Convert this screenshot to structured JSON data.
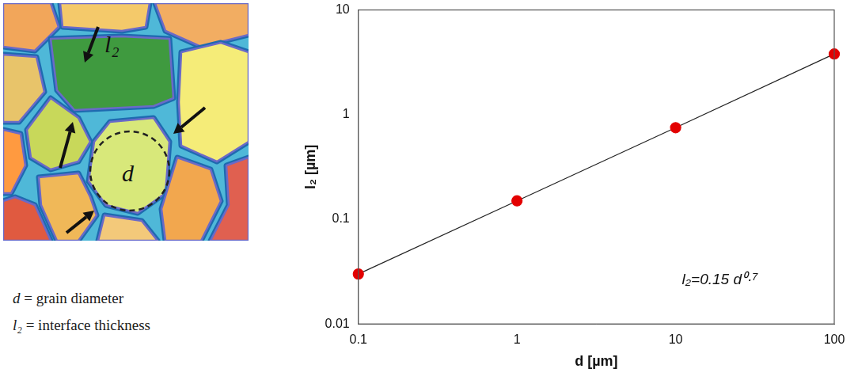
{
  "diagram": {
    "labels": [
      "l₂",
      "d"
    ],
    "legend": [
      {
        "symbol": "d",
        "rest": " = grain diameter"
      },
      {
        "symbol": "l₂",
        "rest": " = interface thickness"
      }
    ]
  },
  "chart_data": {
    "type": "scatter",
    "x": [
      0.1,
      1,
      10,
      100
    ],
    "values": [
      0.03,
      0.15,
      0.75,
      3.8
    ],
    "color": "#e30000",
    "marker": "circle",
    "line_style": "solid",
    "xlabel": "d [µm]",
    "ylabel": "l₂ [µm]",
    "annotations": [
      "l₂=0.15 d⁰·⁷"
    ],
    "log": true,
    "grid": false,
    "xlim": [
      0.1,
      100
    ],
    "xticks": [
      0.1,
      1,
      10,
      100
    ],
    "ylim": [
      0.01,
      10
    ],
    "yticks": [
      0.01,
      0.1,
      1,
      10
    ]
  }
}
